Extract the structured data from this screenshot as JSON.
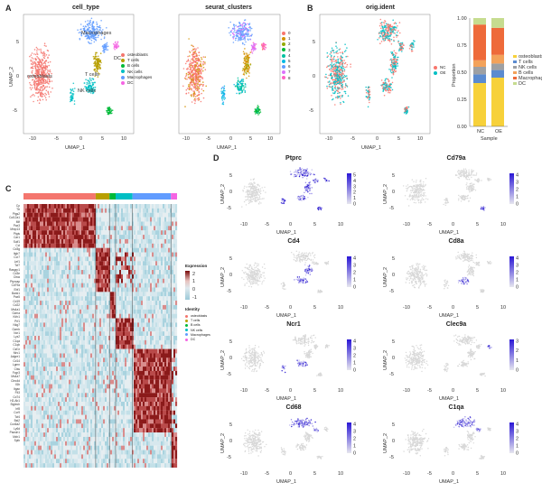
{
  "panels": {
    "a": {
      "label": "A",
      "umap1_title": "cell_type",
      "umap2_title": "seurat_clusters"
    },
    "b": {
      "label": "B",
      "title": "orig.ident"
    },
    "c": {
      "label": "C"
    },
    "d": {
      "label": "D"
    }
  },
  "axes": {
    "x_label": "UMAP_1",
    "y_label": "UMAP_2",
    "umap_x_ticks": [
      "-10",
      "-5",
      "0",
      "5",
      "10"
    ],
    "umap_y_ticks": [
      "5",
      "0",
      "-5"
    ]
  },
  "cell_types": [
    {
      "name": "osteoblasts",
      "color": "#f4766e"
    },
    {
      "name": "T cells",
      "color": "#b79f00"
    },
    {
      "name": "B cells",
      "color": "#00ba38"
    },
    {
      "name": "NK cells",
      "color": "#00bfc4"
    },
    {
      "name": "Macrophages",
      "color": "#619cff"
    },
    {
      "name": "DC",
      "color": "#f564e3"
    }
  ],
  "cluster_annotations": [
    "osteoblasts",
    "T cells",
    "NK cells",
    "Macrophages",
    "DC"
  ],
  "clusters": [
    {
      "name": "0",
      "color": "#f8766d"
    },
    {
      "name": "1",
      "color": "#d39200"
    },
    {
      "name": "2",
      "color": "#93aa00"
    },
    {
      "name": "3",
      "color": "#00ba38"
    },
    {
      "name": "4",
      "color": "#00c19f"
    },
    {
      "name": "5",
      "color": "#00b9e3"
    },
    {
      "name": "6",
      "color": "#619cff"
    },
    {
      "name": "7",
      "color": "#db72fb"
    },
    {
      "name": "8",
      "color": "#ff61c3"
    }
  ],
  "orig_ident": [
    {
      "name": "NC",
      "color": "#f8766d"
    },
    {
      "name": "OE",
      "color": "#00bfc4"
    }
  ],
  "chart_data": {
    "type": "bar",
    "stacked": true,
    "title": "",
    "xlabel": "Sample",
    "ylabel": "Proportion",
    "categories": [
      "NC",
      "OE"
    ],
    "ylim": [
      0,
      1
    ],
    "y_ticks": [
      "1.00",
      "0.75",
      "0.50",
      "0.25",
      "0.00"
    ],
    "series": [
      {
        "name": "osteoblasts",
        "values": [
          0.4,
          0.45
        ],
        "color": "#f7d13a"
      },
      {
        "name": "T cells",
        "values": [
          0.08,
          0.07
        ],
        "color": "#5b8bd0"
      },
      {
        "name": "NK cells",
        "values": [
          0.07,
          0.06
        ],
        "color": "#9ea0a3"
      },
      {
        "name": "B cells",
        "values": [
          0.06,
          0.08
        ],
        "color": "#f3a25a"
      },
      {
        "name": "Macrophages",
        "values": [
          0.33,
          0.25
        ],
        "color": "#ee6a3a"
      },
      {
        "name": "DC",
        "values": [
          0.06,
          0.09
        ],
        "color": "#c6dc8f"
      }
    ]
  },
  "heatmap": {
    "genes": [
      "Cp",
      "Ttr",
      "Ptgs2",
      "Col12a1",
      "Mif",
      "Pax3",
      "Mmp13",
      "Ptgis",
      "Car1",
      "Sulf1",
      "Ccl",
      "Cd3g",
      "Itgb7",
      "Ccr7",
      "Lef1",
      "Tcf7",
      "Rasgrp1",
      "Cd3e",
      "Ctsw",
      "Ptprcap",
      "Cd79a",
      "Ebf1",
      "Bank1",
      "Pax5",
      "Cd19",
      "Cd22",
      "Ms4a1",
      "Gzma",
      "Klrb1",
      "Prf1",
      "Nkg7",
      "Gzmb",
      "Ncr1",
      "Lyz2",
      "C1qa",
      "C1qb",
      "Csf1r",
      "Mrc1",
      "Adgre1",
      "Cd14",
      "Lgmn",
      "Ctss",
      "Fcgr3",
      "Ms4a7",
      "Clec4d",
      "Il1b",
      "Itgax",
      "Flt3",
      "Cd74",
      "H2-Ab1",
      "Siglech",
      "Irf8",
      "Ccr9",
      "Tcf4",
      "Bst2",
      "Cox6a2",
      "Ly6d",
      "Pacsin1",
      "Mzb1",
      "Spib"
    ],
    "legend_title": "Expression",
    "legend_ticks": [
      "2",
      "1",
      "0",
      "-1"
    ],
    "identity_title": "Identity",
    "identity_items": [
      "osteoblasts",
      "T cells",
      "B cells",
      "NK cells",
      "Macrophages",
      "DC"
    ]
  },
  "features": [
    {
      "gene": "Ptprc",
      "ticks": [
        "5",
        "4",
        "3",
        "2",
        "1",
        "0"
      ]
    },
    {
      "gene": "Cd79a",
      "ticks": [
        "4",
        "3",
        "2",
        "1",
        "0"
      ]
    },
    {
      "gene": "Cd4",
      "ticks": [
        "4",
        "3",
        "2",
        "1",
        "0"
      ]
    },
    {
      "gene": "Cd8a",
      "ticks": [
        "4",
        "3",
        "2",
        "1",
        "0"
      ]
    },
    {
      "gene": "Ncr1",
      "ticks": [
        "4",
        "3",
        "2",
        "1",
        "0"
      ]
    },
    {
      "gene": "Clec9a",
      "ticks": [
        "3",
        "2",
        "1",
        "0"
      ]
    },
    {
      "gene": "Cd68",
      "ticks": [
        "4",
        "3",
        "2",
        "1",
        "0"
      ]
    },
    {
      "gene": "C1qa",
      "ticks": [
        "4",
        "3",
        "2",
        "1",
        "0"
      ]
    }
  ]
}
